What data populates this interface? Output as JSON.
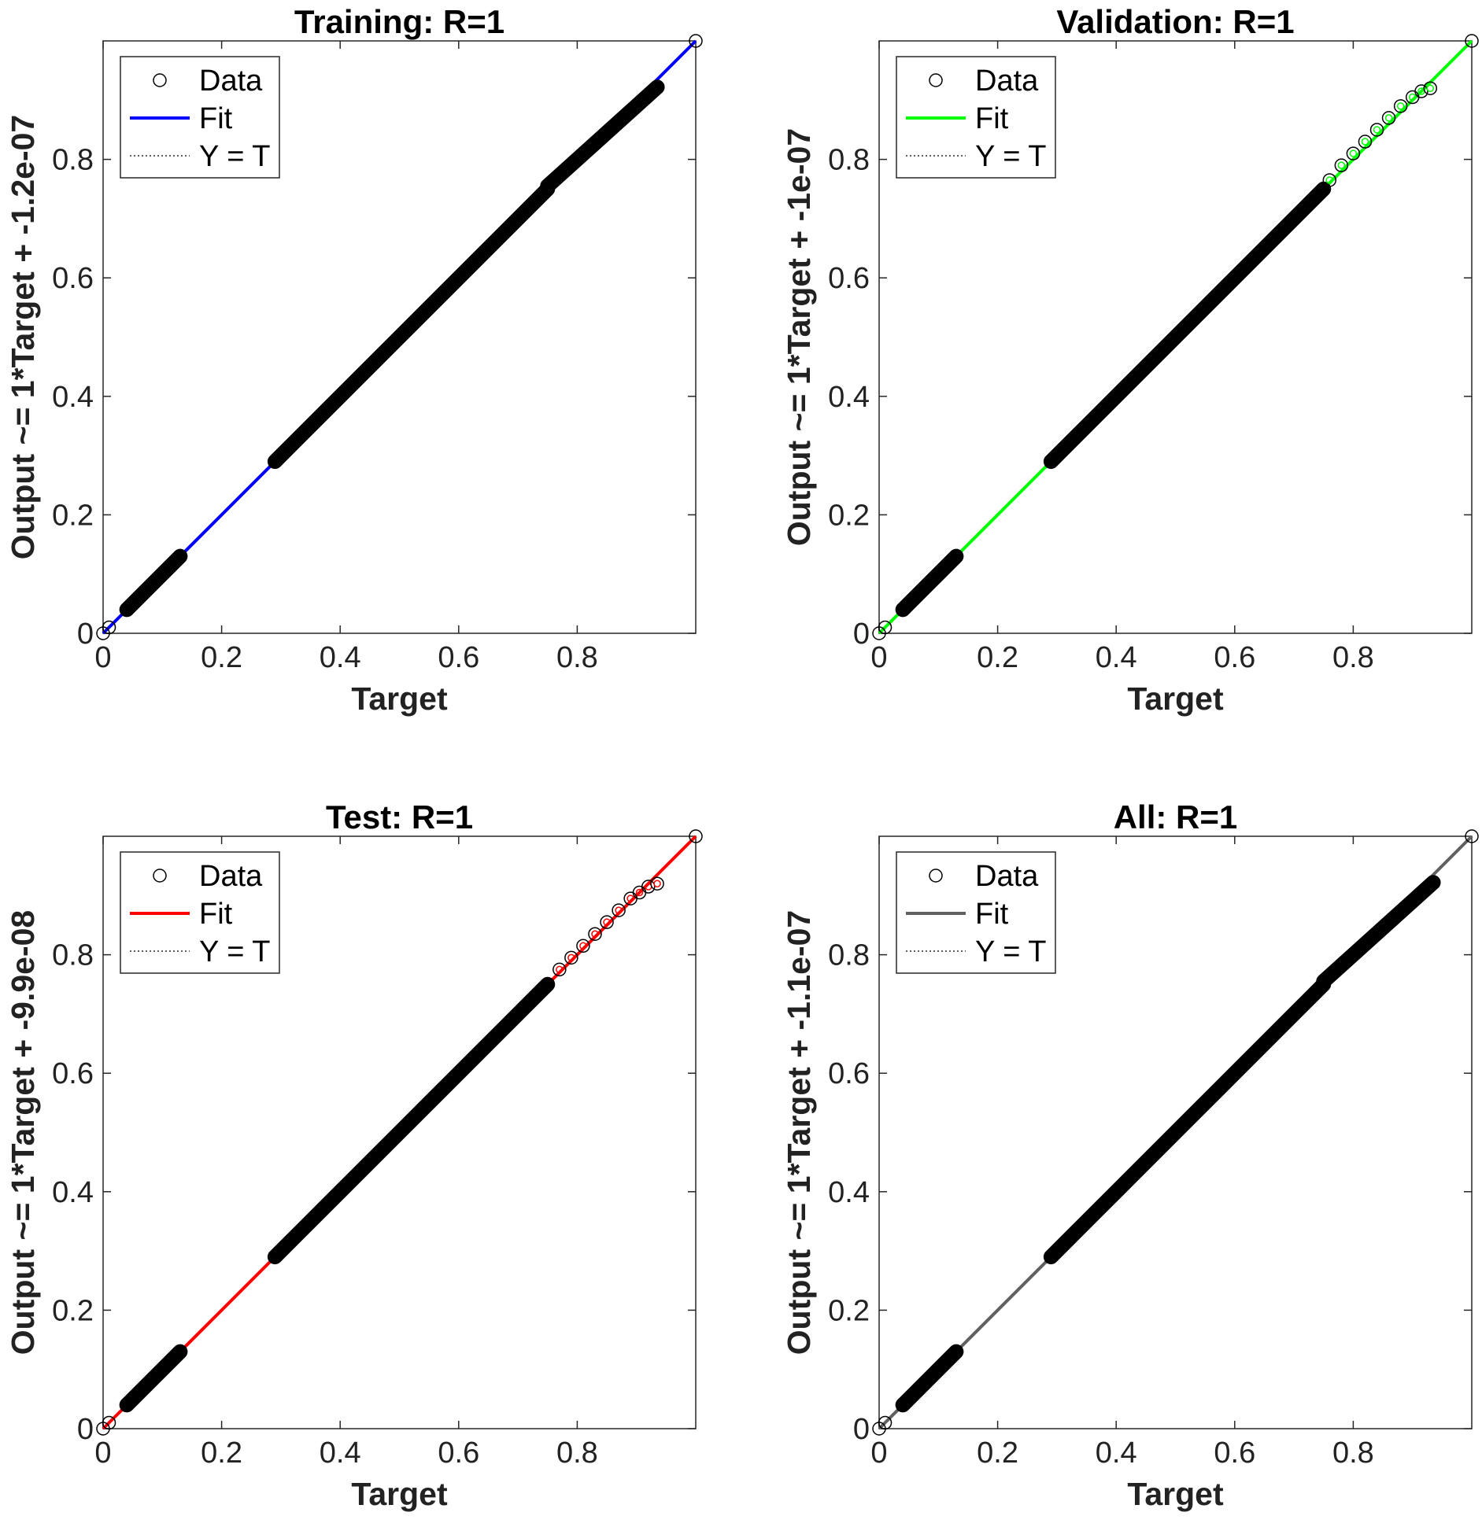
{
  "chart_data": [
    {
      "type": "scatter",
      "title": "Training: R=1",
      "xlabel": "Target",
      "ylabel": "Output ~= 1*Target + -1.2e-07",
      "xlim": [
        0,
        1
      ],
      "ylim": [
        0,
        1
      ],
      "xticks": [
        0,
        0.2,
        0.4,
        0.6,
        0.8
      ],
      "xtick_labels": [
        "0",
        "0.2",
        "0.4",
        "0.6",
        "0.8"
      ],
      "yticks": [
        0,
        0.2,
        0.4,
        0.6,
        0.8
      ],
      "ytick_labels": [
        "0",
        "0.2",
        "0.4",
        "0.6",
        "0.8"
      ],
      "fit_color": "#0000ff",
      "fit": {
        "slope": 1,
        "intercept": -1.2e-07
      },
      "legend": [
        "Data",
        "Fit",
        "Y = T"
      ],
      "legend_position": "top-left",
      "data_segments": [
        [
          0.04,
          0.13
        ],
        [
          0.29,
          0.75
        ],
        [
          0.75,
          0.935
        ]
      ],
      "data_points": [
        [
          0,
          0
        ],
        [
          0.01,
          0.01
        ],
        [
          1.0,
          1.0
        ]
      ]
    },
    {
      "type": "scatter",
      "title": "Validation: R=1",
      "xlabel": "Target",
      "ylabel": "Output ~= 1*Target + -1e-07",
      "xlim": [
        0,
        1
      ],
      "ylim": [
        0,
        1
      ],
      "xticks": [
        0,
        0.2,
        0.4,
        0.6,
        0.8
      ],
      "xtick_labels": [
        "0",
        "0.2",
        "0.4",
        "0.6",
        "0.8"
      ],
      "yticks": [
        0,
        0.2,
        0.4,
        0.6,
        0.8
      ],
      "ytick_labels": [
        "0",
        "0.2",
        "0.4",
        "0.6",
        "0.8"
      ],
      "fit_color": "#00ff00",
      "fit": {
        "slope": 1,
        "intercept": -1e-07
      },
      "legend": [
        "Data",
        "Fit",
        "Y = T"
      ],
      "legend_position": "top-left",
      "data_segments": [
        [
          0.04,
          0.13
        ],
        [
          0.29,
          0.75
        ]
      ],
      "data_points": [
        [
          0,
          0
        ],
        [
          0.01,
          0.01
        ],
        [
          0.76,
          0.765
        ],
        [
          0.78,
          0.79
        ],
        [
          0.8,
          0.81
        ],
        [
          0.82,
          0.83
        ],
        [
          0.84,
          0.85
        ],
        [
          0.86,
          0.87
        ],
        [
          0.88,
          0.89
        ],
        [
          0.9,
          0.905
        ],
        [
          0.915,
          0.915
        ],
        [
          0.93,
          0.92
        ],
        [
          1.0,
          1.0
        ]
      ]
    },
    {
      "type": "scatter",
      "title": "Test: R=1",
      "xlabel": "Target",
      "ylabel": "Output ~= 1*Target + -9.9e-08",
      "xlim": [
        0,
        1
      ],
      "ylim": [
        0,
        1
      ],
      "xticks": [
        0,
        0.2,
        0.4,
        0.6,
        0.8
      ],
      "xtick_labels": [
        "0",
        "0.2",
        "0.4",
        "0.6",
        "0.8"
      ],
      "yticks": [
        0,
        0.2,
        0.4,
        0.6,
        0.8
      ],
      "ytick_labels": [
        "0",
        "0.2",
        "0.4",
        "0.6",
        "0.8"
      ],
      "fit_color": "#ff0000",
      "fit": {
        "slope": 1,
        "intercept": -9.9e-08
      },
      "legend": [
        "Data",
        "Fit",
        "Y = T"
      ],
      "legend_position": "top-left",
      "data_segments": [
        [
          0.04,
          0.13
        ],
        [
          0.29,
          0.75
        ]
      ],
      "data_points": [
        [
          0,
          0
        ],
        [
          0.01,
          0.01
        ],
        [
          0.77,
          0.775
        ],
        [
          0.79,
          0.795
        ],
        [
          0.81,
          0.815
        ],
        [
          0.83,
          0.835
        ],
        [
          0.85,
          0.855
        ],
        [
          0.87,
          0.875
        ],
        [
          0.89,
          0.895
        ],
        [
          0.905,
          0.905
        ],
        [
          0.92,
          0.915
        ],
        [
          0.935,
          0.92
        ],
        [
          1.0,
          1.0
        ]
      ]
    },
    {
      "type": "scatter",
      "title": "All: R=1",
      "xlabel": "Target",
      "ylabel": "Output ~= 1*Target + -1.1e-07",
      "xlim": [
        0,
        1
      ],
      "ylim": [
        0,
        1
      ],
      "xticks": [
        0,
        0.2,
        0.4,
        0.6,
        0.8
      ],
      "xtick_labels": [
        "0",
        "0.2",
        "0.4",
        "0.6",
        "0.8"
      ],
      "yticks": [
        0,
        0.2,
        0.4,
        0.6,
        0.8
      ],
      "ytick_labels": [
        "0",
        "0.2",
        "0.4",
        "0.6",
        "0.8"
      ],
      "fit_color": "#606060",
      "fit": {
        "slope": 1,
        "intercept": -1.1e-07
      },
      "legend": [
        "Data",
        "Fit",
        "Y = T"
      ],
      "legend_position": "top-left",
      "data_segments": [
        [
          0.04,
          0.13
        ],
        [
          0.29,
          0.75
        ],
        [
          0.75,
          0.935
        ]
      ],
      "data_points": [
        [
          0,
          0
        ],
        [
          0.01,
          0.01
        ],
        [
          1.0,
          1.0
        ]
      ]
    }
  ]
}
